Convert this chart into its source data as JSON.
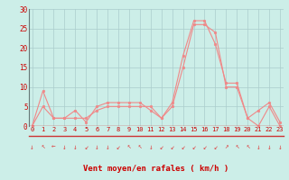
{
  "hours": [
    0,
    1,
    2,
    3,
    4,
    5,
    6,
    7,
    8,
    9,
    10,
    11,
    12,
    13,
    14,
    15,
    16,
    17,
    18,
    19,
    20,
    21,
    22,
    23
  ],
  "wind_avg": [
    0,
    9,
    2,
    2,
    4,
    1,
    5,
    6,
    6,
    6,
    6,
    4,
    2,
    6,
    18,
    27,
    27,
    21,
    11,
    11,
    2,
    0,
    5,
    0
  ],
  "wind_gust": [
    0,
    5,
    2,
    2,
    2,
    2,
    4,
    5,
    5,
    5,
    5,
    5,
    2,
    5,
    15,
    26,
    26,
    24,
    10,
    10,
    2,
    4,
    6,
    1
  ],
  "bg_color": "#cceee8",
  "grid_color": "#aacccc",
  "line_color": "#f08888",
  "marker_color": "#f08888",
  "xlabel": "Vent moyen/en rafales ( km/h )",
  "xlabel_color": "#cc0000",
  "tick_color": "#cc0000",
  "ylim": [
    0,
    30
  ],
  "yticks": [
    0,
    5,
    10,
    15,
    20,
    25,
    30
  ],
  "arrow_color": "#dd4444",
  "spine_color": "#667777"
}
